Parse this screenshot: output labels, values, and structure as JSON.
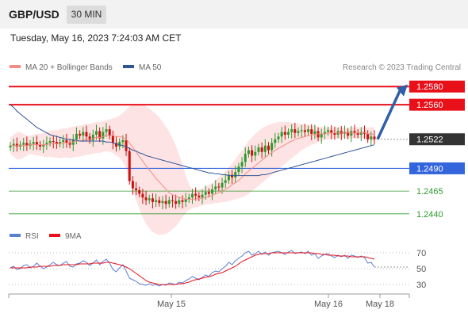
{
  "header": {
    "symbol": "GBP/USD",
    "timeframe": "30 MIN",
    "timestamp": "Tuesday, May 16, 2023 7:24:03 AM CET"
  },
  "legend": {
    "ma20_label": "MA 20 + Bollinger Bands",
    "ma50_label": "MA 50",
    "ma20_color": "#f28c84",
    "ma50_color": "#2f5597",
    "credit": "Research © 2023 Trading Central"
  },
  "rsi_legend": {
    "rsi_label": "RSI",
    "ma_label": "9MA",
    "rsi_color": "#5b7fd1",
    "ma_color": "#e8111a"
  },
  "colors": {
    "resistance": "#e8111a",
    "support_blue": "#3366dd",
    "support_green": "#2e9a2e",
    "current": "#333333",
    "band_fill": "#fde0e0",
    "candle_up": "#2e9a2e",
    "candle_down": "#cc1010",
    "arrow": "#2f5fa7"
  },
  "chart_data": [
    {
      "type": "candlestick",
      "title": "GBP/USD 30 MIN",
      "ylim": [
        1.2425,
        1.2595
      ],
      "x_ticks": [
        "May 15",
        "May 16",
        "May 18"
      ],
      "levels": [
        {
          "value": 1.258,
          "label": "1.2580",
          "kind": "resistance"
        },
        {
          "value": 1.256,
          "label": "1.2560",
          "kind": "resistance"
        },
        {
          "value": 1.2522,
          "label": "1.2522",
          "kind": "current"
        },
        {
          "value": 1.249,
          "label": "1.2490",
          "kind": "support"
        },
        {
          "value": 1.2465,
          "label": "1.2465",
          "kind": "support"
        },
        {
          "value": 1.244,
          "label": "1.2440",
          "kind": "support"
        }
      ],
      "close": [
        1.2515,
        1.2517,
        1.2514,
        1.2516,
        1.2518,
        1.2515,
        1.2517,
        1.2519,
        1.2516,
        1.2514,
        1.2516,
        1.2518,
        1.252,
        1.2519,
        1.2517,
        1.2519,
        1.2521,
        1.2518,
        1.2516,
        1.2522,
        1.2528,
        1.2526,
        1.253,
        1.2525,
        1.2521,
        1.2527,
        1.2531,
        1.2523,
        1.253,
        1.2533,
        1.2526,
        1.2518,
        1.2514,
        1.2519,
        1.2521,
        1.2509,
        1.2476,
        1.2468,
        1.2466,
        1.2462,
        1.2458,
        1.2455,
        1.2457,
        1.2453,
        1.2455,
        1.2452,
        1.2454,
        1.2451,
        1.2455,
        1.2454,
        1.2451,
        1.2455,
        1.2453,
        1.2456,
        1.2458,
        1.2462,
        1.246,
        1.2458,
        1.2461,
        1.2464,
        1.2462,
        1.2467,
        1.247,
        1.2469,
        1.2474,
        1.2477,
        1.2483,
        1.248,
        1.2486,
        1.2492,
        1.2497,
        1.2506,
        1.251,
        1.2504,
        1.2508,
        1.2513,
        1.2508,
        1.2515,
        1.251,
        1.2518,
        1.2522,
        1.2525,
        1.253,
        1.2527,
        1.253,
        1.2533,
        1.2529,
        1.2531,
        1.2532,
        1.253,
        1.2533,
        1.2528,
        1.2531,
        1.2524,
        1.2528,
        1.253,
        1.2532,
        1.2529,
        1.2527,
        1.2531,
        1.2528,
        1.253,
        1.2526,
        1.2531,
        1.2529,
        1.2527,
        1.253,
        1.2528,
        1.2522,
        1.2525,
        1.2522
      ],
      "ma20": [
        1.2515,
        1.2515,
        1.2515,
        1.2515,
        1.2515,
        1.2515,
        1.2516,
        1.2516,
        1.2516,
        1.2516,
        1.2516,
        1.2516,
        1.2517,
        1.2517,
        1.2517,
        1.2517,
        1.2518,
        1.2518,
        1.2518,
        1.2519,
        1.252,
        1.252,
        1.2521,
        1.2522,
        1.2522,
        1.2523,
        1.2524,
        1.2524,
        1.2525,
        1.2526,
        1.2526,
        1.2526,
        1.2525,
        1.2525,
        1.2524,
        1.2522,
        1.2518,
        1.2513,
        1.2508,
        1.2503,
        1.2498,
        1.2493,
        1.2488,
        1.2484,
        1.2479,
        1.2475,
        1.2471,
        1.2467,
        1.2463,
        1.2461,
        1.2459,
        1.2458,
        1.2457,
        1.2456,
        1.2456,
        1.2456,
        1.2456,
        1.2457,
        1.2457,
        1.2458,
        1.2459,
        1.246,
        1.2462,
        1.2463,
        1.2465,
        1.2467,
        1.2469,
        1.2472,
        1.2474,
        1.2477,
        1.248,
        1.2484,
        1.2487,
        1.249,
        1.2493,
        1.2496,
        1.2499,
        1.2502,
        1.2505,
        1.2507,
        1.251,
        1.2512,
        1.2514,
        1.2516,
        1.2518,
        1.252,
        1.2522,
        1.2523,
        1.2524,
        1.2525,
        1.2526,
        1.2527,
        1.2527,
        1.2528,
        1.2528,
        1.2528,
        1.2529,
        1.2529,
        1.2529,
        1.2529,
        1.2529,
        1.2529,
        1.2529,
        1.2529,
        1.2529,
        1.2529,
        1.2529,
        1.2529,
        1.2528,
        1.2528,
        1.2527
      ],
      "bb_upper": [
        1.2524,
        1.2527,
        1.253,
        1.253,
        1.2528,
        1.2526,
        1.2526,
        1.2527,
        1.2528,
        1.2528,
        1.2529,
        1.253,
        1.2531,
        1.2532,
        1.2532,
        1.2533,
        1.2534,
        1.2534,
        1.2535,
        1.2536,
        1.2537,
        1.2537,
        1.2538,
        1.2539,
        1.2539,
        1.254,
        1.2541,
        1.2541,
        1.2542,
        1.2543,
        1.2544,
        1.2545,
        1.2546,
        1.2548,
        1.2551,
        1.2554,
        1.2558,
        1.256,
        1.2561,
        1.2561,
        1.256,
        1.2558,
        1.2556,
        1.2553,
        1.255,
        1.2546,
        1.2541,
        1.2536,
        1.253,
        1.2523,
        1.2515,
        1.2505,
        1.2495,
        1.2482,
        1.2472,
        1.2467,
        1.2466,
        1.2467,
        1.2468,
        1.247,
        1.2472,
        1.2474,
        1.2477,
        1.248,
        1.2483,
        1.2487,
        1.2491,
        1.2495,
        1.25,
        1.2505,
        1.251,
        1.2515,
        1.252,
        1.2524,
        1.2528,
        1.2531,
        1.2534,
        1.2536,
        1.2538,
        1.2539,
        1.254,
        1.2541,
        1.2541,
        1.2541,
        1.2541,
        1.254,
        1.254,
        1.2539,
        1.2539,
        1.2538,
        1.2538,
        1.2537,
        1.2537,
        1.2536,
        1.2536,
        1.2535,
        1.2535,
        1.2535,
        1.2535,
        1.2535,
        1.2535,
        1.2535,
        1.2535,
        1.2535,
        1.2535,
        1.2535,
        1.2535,
        1.2535,
        1.2535,
        1.2535,
        1.2535
      ],
      "bb_lower": [
        1.2506,
        1.2503,
        1.25,
        1.25,
        1.2502,
        1.2504,
        1.2506,
        1.2505,
        1.2504,
        1.2504,
        1.2503,
        1.2502,
        1.2503,
        1.2502,
        1.2502,
        1.2501,
        1.2502,
        1.2502,
        1.2501,
        1.2502,
        1.2503,
        1.2503,
        1.2504,
        1.2505,
        1.2505,
        1.2506,
        1.2507,
        1.2507,
        1.2508,
        1.2509,
        1.2508,
        1.2507,
        1.2504,
        1.2502,
        1.2497,
        1.249,
        1.2478,
        1.2466,
        1.2455,
        1.2445,
        1.2436,
        1.2429,
        1.2424,
        1.242,
        1.2418,
        1.2417,
        1.2417,
        1.2418,
        1.242,
        1.2423,
        1.2426,
        1.2431,
        1.2436,
        1.2441,
        1.2444,
        1.2446,
        1.2447,
        1.2448,
        1.2449,
        1.245,
        1.2451,
        1.2451,
        1.2452,
        1.2452,
        1.2453,
        1.2453,
        1.2454,
        1.2455,
        1.2456,
        1.2457,
        1.2458,
        1.246,
        1.2462,
        1.2465,
        1.2468,
        1.2471,
        1.2474,
        1.2477,
        1.248,
        1.2483,
        1.2486,
        1.2489,
        1.2492,
        1.2495,
        1.2498,
        1.2501,
        1.2504,
        1.2507,
        1.251,
        1.2512,
        1.2514,
        1.2516,
        1.2517,
        1.2519,
        1.252,
        1.2521,
        1.2522,
        1.2522,
        1.2523,
        1.2523,
        1.2523,
        1.2523,
        1.2523,
        1.2523,
        1.2523,
        1.2523,
        1.2523,
        1.2523,
        1.2521,
        1.2521,
        1.2519
      ],
      "ma50": [
        1.256,
        1.2557,
        1.2553,
        1.255,
        1.2547,
        1.2544,
        1.2541,
        1.2538,
        1.2535,
        1.2533,
        1.2531,
        1.2529,
        1.2527,
        1.2526,
        1.2525,
        1.2524,
        1.2523,
        1.2522,
        1.2522,
        1.2521,
        1.2521,
        1.252,
        1.252,
        1.252,
        1.252,
        1.252,
        1.252,
        1.252,
        1.252,
        1.2519,
        1.2519,
        1.2518,
        1.2517,
        1.2516,
        1.2515,
        1.2514,
        1.2512,
        1.251,
        1.2509,
        1.2507,
        1.2506,
        1.2504,
        1.2503,
        1.2502,
        1.2501,
        1.25,
        1.2499,
        1.2498,
        1.2497,
        1.2496,
        1.2495,
        1.2494,
        1.2493,
        1.2492,
        1.2491,
        1.249,
        1.2489,
        1.2488,
        1.2487,
        1.2486,
        1.2485,
        1.2485,
        1.2484,
        1.2484,
        1.2483,
        1.2483,
        1.2482,
        1.2482,
        1.2482,
        1.2482,
        1.2482,
        1.2482,
        1.2482,
        1.2482,
        1.2482,
        1.2482,
        1.2483,
        1.2483,
        1.2484,
        1.2485,
        1.2486,
        1.2487,
        1.2488,
        1.2489,
        1.249,
        1.2491,
        1.2492,
        1.2493,
        1.2494,
        1.2495,
        1.2496,
        1.2497,
        1.2498,
        1.2499,
        1.25,
        1.2501,
        1.2502,
        1.2503,
        1.2504,
        1.2505,
        1.2506,
        1.2507,
        1.2508,
        1.2509,
        1.251,
        1.2511,
        1.2512,
        1.2513,
        1.2514,
        1.2515,
        1.2516
      ],
      "forecast_arrow": {
        "from": 1.2522,
        "to": 1.2577
      }
    },
    {
      "type": "line",
      "title": "RSI",
      "ylim": [
        20,
        80
      ],
      "y_ticks": [
        70,
        50,
        30
      ],
      "series": [
        {
          "name": "RSI",
          "values": [
            51,
            53,
            49,
            50,
            54,
            55,
            51,
            53,
            57,
            53,
            50,
            52,
            55,
            58,
            55,
            54,
            57,
            59,
            53,
            52,
            56,
            57,
            60,
            58,
            54,
            57,
            61,
            55,
            59,
            62,
            57,
            49,
            46,
            51,
            55,
            47,
            38,
            36,
            34,
            31,
            30,
            29,
            31,
            29,
            30,
            28,
            30,
            29,
            32,
            31,
            30,
            33,
            32,
            35,
            37,
            40,
            38,
            36,
            39,
            42,
            40,
            45,
            47,
            46,
            50,
            53,
            58,
            55,
            60,
            63,
            66,
            70,
            72,
            67,
            69,
            72,
            68,
            71,
            67,
            70,
            71,
            72,
            70,
            68,
            71,
            73,
            69,
            70,
            71,
            69,
            72,
            67,
            69,
            63,
            66,
            68,
            69,
            66,
            64,
            67,
            65,
            67,
            63,
            67,
            66,
            64,
            66,
            64,
            57,
            58,
            52
          ]
        },
        {
          "name": "9MA",
          "values": [
            51,
            51,
            51,
            51,
            51,
            51,
            52,
            52,
            52,
            53,
            53,
            53,
            53,
            54,
            54,
            54,
            55,
            55,
            55,
            55,
            55,
            56,
            56,
            56,
            56,
            57,
            57,
            57,
            57,
            58,
            58,
            57,
            56,
            55,
            54,
            52,
            50,
            47,
            44,
            41,
            38,
            35,
            33,
            32,
            31,
            30,
            30,
            30,
            30,
            30,
            30,
            31,
            31,
            32,
            33,
            35,
            36,
            37,
            38,
            39,
            40,
            41,
            43,
            44,
            45,
            47,
            49,
            51,
            53,
            56,
            59,
            61,
            63,
            65,
            67,
            68,
            69,
            69,
            69,
            70,
            70,
            70,
            70,
            70,
            70,
            70,
            70,
            70,
            70,
            70,
            70,
            70,
            69,
            69,
            68,
            68,
            67,
            67,
            67,
            66,
            66,
            66,
            66,
            65,
            65,
            65,
            65,
            65,
            64,
            63,
            62
          ]
        }
      ]
    }
  ]
}
